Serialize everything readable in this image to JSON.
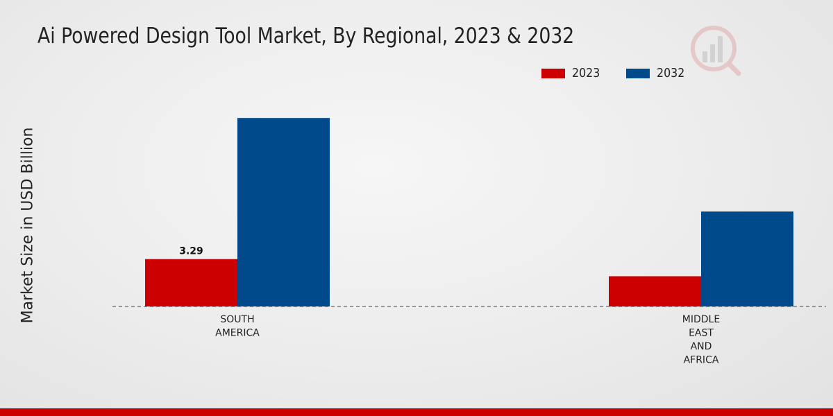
{
  "chart_data": {
    "type": "bar",
    "title": "Ai Powered Design Tool Market, By Regional, 2023 & 2032",
    "xlabel": "",
    "ylabel": "Market Size in USD Billion",
    "categories": [
      "SOUTH AMERICA",
      "MIDDLE EAST AND AFRICA"
    ],
    "category_lines": [
      [
        "SOUTH",
        "AMERICA"
      ],
      [
        "MIDDLE",
        "EAST",
        "AND",
        "AFRICA"
      ]
    ],
    "series": [
      {
        "name": "2023",
        "color": "#cc0000",
        "values": [
          3.29,
          2.1
        ],
        "labels": [
          "3.29",
          ""
        ]
      },
      {
        "name": "2032",
        "color": "#004a8c",
        "values": [
          13.1,
          6.6
        ],
        "labels": [
          "",
          ""
        ]
      }
    ],
    "ylim": [
      0,
      16
    ],
    "legend_position": "top-right"
  }
}
